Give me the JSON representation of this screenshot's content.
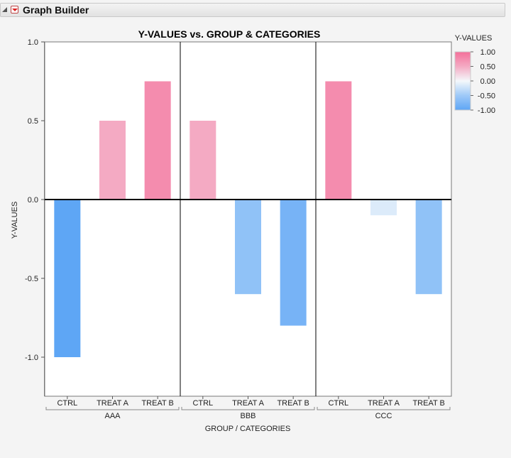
{
  "window": {
    "title": "Graph Builder"
  },
  "chart_data": {
    "type": "bar",
    "title": "Y-VALUES vs. GROUP & CATEGORIES",
    "xlabel": "GROUP / CATEGORIES",
    "ylabel": "Y-VALUES",
    "ylim": [
      -1.25,
      1.0
    ],
    "yticks": [
      1.0,
      0.5,
      0.0,
      -0.5,
      -1.0
    ],
    "ytick_labels": [
      "1.0",
      "0.5",
      "0.0",
      "-0.5",
      "-1.0"
    ],
    "groups": [
      {
        "name": "AAA",
        "categories": [
          "CTRL",
          "TREAT A",
          "TREAT B"
        ],
        "values": [
          -1.0,
          0.5,
          0.75
        ]
      },
      {
        "name": "BBB",
        "categories": [
          "CTRL",
          "TREAT A",
          "TREAT B"
        ],
        "values": [
          0.5,
          -0.6,
          -0.8
        ]
      },
      {
        "name": "CCC",
        "categories": [
          "CTRL",
          "TREAT A",
          "TREAT B"
        ],
        "values": [
          0.75,
          -0.1,
          -0.6
        ]
      }
    ],
    "legend": {
      "title": "Y-VALUES",
      "position": "top-right",
      "labels": [
        "1.00",
        "0.50",
        "0.00",
        "-0.50",
        "-1.00"
      ],
      "colors": {
        "high": "#f4709a",
        "mid": "#f4f8fb",
        "low": "#5ea6f5"
      }
    }
  }
}
